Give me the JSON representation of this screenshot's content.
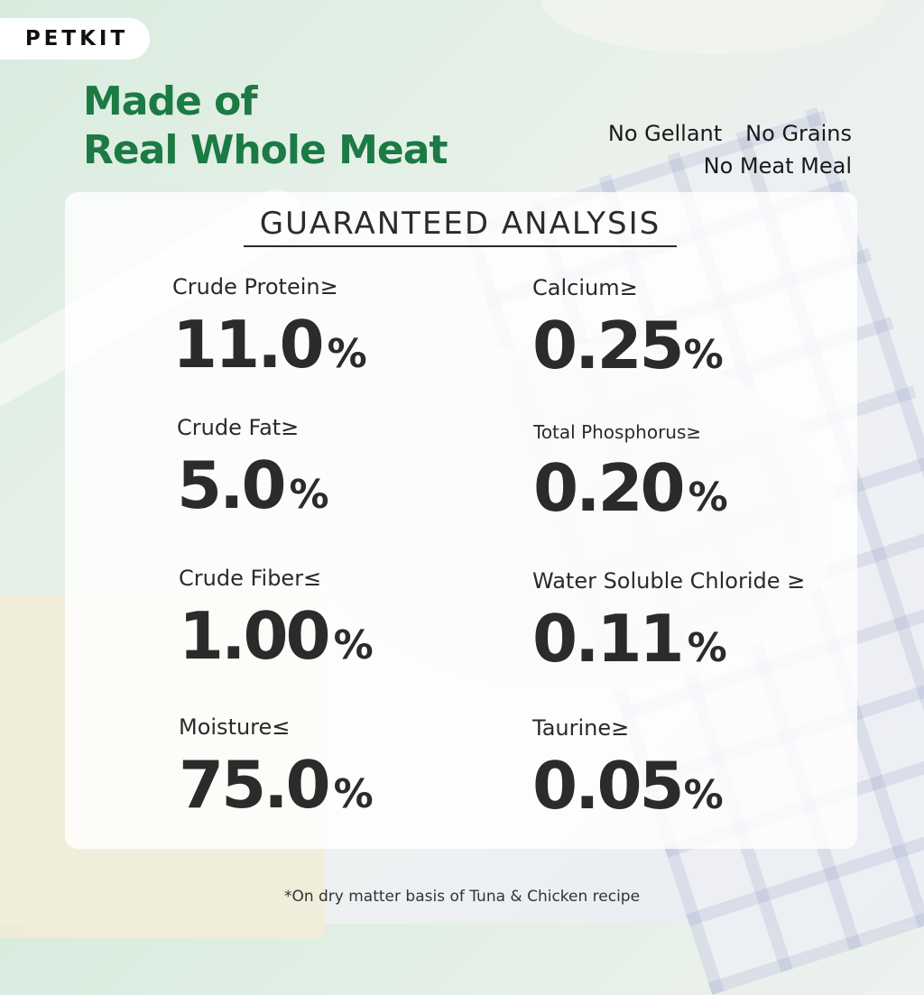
{
  "brand": {
    "logo_text": "PETKIT"
  },
  "headline": {
    "line1": "Made of",
    "line2": "Real Whole Meat"
  },
  "claims": {
    "no_gellant": "No Gellant",
    "no_grains": "No Grains",
    "no_meat_meal": "No Meat Meal"
  },
  "analysis": {
    "title": "GUARANTEED ANALYSIS",
    "items": [
      {
        "label": "Crude Protein≥",
        "value": "11.0",
        "unit": "%"
      },
      {
        "label": "Calcium≥",
        "value": "0.25",
        "unit": "%"
      },
      {
        "label": "Crude Fat≥",
        "value": "5.0",
        "unit": "%"
      },
      {
        "label": "Total Phosphorus≥",
        "value": "0.20",
        "unit": "%"
      },
      {
        "label": "Crude Fiber≤",
        "value": "1.00",
        "unit": "%"
      },
      {
        "label": "Water Soluble Chloride ≥",
        "value": "0.11",
        "unit": "%"
      },
      {
        "label": "Moisture≤",
        "value": "75.0",
        "unit": "%"
      },
      {
        "label": "Taurine≥",
        "value": "0.05",
        "unit": "%"
      }
    ]
  },
  "footnote": "*On dry matter basis of Tuna & Chicken recipe",
  "colors": {
    "headline_green": "#1c7a44",
    "value_text": "#2b2b2b"
  }
}
